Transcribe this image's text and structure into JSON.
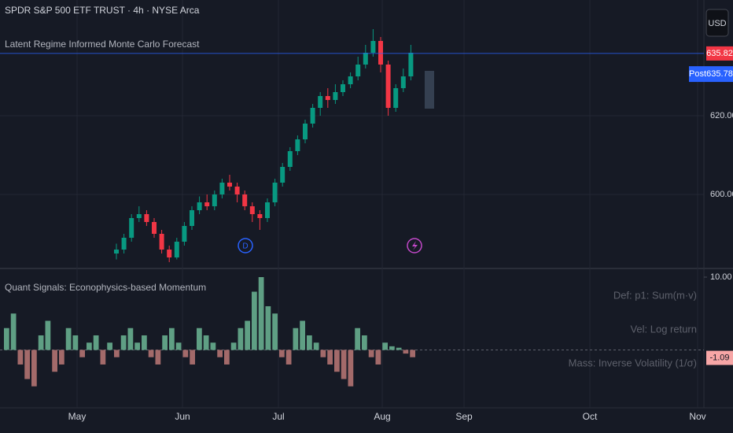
{
  "header": {
    "symbol": "SPDR S&P 500 ETF TRUST · 4h · NYSE Arca",
    "indicator": "Latent Regime Informed Monte Carlo Forecast",
    "currency": "USD"
  },
  "price_labels": {
    "last": 635.82,
    "post_tag": "Post",
    "post": 635.78
  },
  "chart_data": [
    {
      "type": "candlestick",
      "open": [
        585,
        586,
        589,
        594,
        595,
        593,
        590,
        586,
        584,
        588,
        592,
        596,
        598,
        597,
        600,
        603,
        602,
        600,
        597,
        595,
        594,
        598,
        603,
        607,
        611,
        614,
        618,
        622,
        625,
        624,
        626,
        628,
        630,
        633,
        636,
        639,
        633,
        622,
        627,
        630
      ],
      "high": [
        587.5,
        590,
        595,
        597,
        596,
        594,
        591,
        587,
        589,
        593,
        597,
        599.5,
        600,
        601,
        604,
        605,
        603,
        601,
        598,
        596,
        599,
        604,
        608,
        612,
        615,
        619,
        623,
        626,
        627,
        628,
        629,
        631,
        635,
        638,
        642,
        640,
        634,
        628,
        632,
        638
      ],
      "low": [
        583.5,
        585,
        588,
        593,
        592,
        589,
        585,
        582.8,
        583.5,
        587,
        591,
        595,
        596,
        596,
        599,
        601,
        598,
        596,
        593,
        591,
        593,
        597,
        602,
        606,
        610,
        613,
        617,
        620,
        622,
        623,
        625,
        627,
        629,
        632,
        635,
        631,
        620,
        621,
        626,
        629
      ],
      "close": [
        586,
        589,
        594,
        595,
        593,
        590,
        586,
        584,
        588,
        592,
        596,
        598,
        597,
        600,
        603,
        602,
        600,
        597,
        595,
        594,
        598,
        603,
        607,
        611,
        614,
        618,
        622,
        625,
        624,
        626,
        628,
        630,
        633,
        636,
        639,
        633,
        622,
        627,
        630,
        636
      ],
      "up_color": "#089981",
      "down_color": "#f23645",
      "ylim": [
        582.4,
        649.4
      ],
      "yticks": [
        {
          "value": 600,
          "label": "600.00"
        },
        {
          "value": 620,
          "label": "620.00"
        }
      ],
      "grid": true
    },
    {
      "type": "bar",
      "title": "Quant Signals: Econophysics-based Momentum",
      "values": [
        3,
        5,
        -2,
        -4,
        -5,
        2,
        4,
        -3,
        -2,
        3,
        2,
        -1,
        1,
        2,
        -2,
        1,
        -1,
        2,
        3,
        1,
        2,
        -1,
        -2,
        2,
        3,
        1,
        -1,
        -2,
        3,
        2,
        1,
        -1,
        -2,
        1,
        3,
        4,
        8,
        10,
        6,
        5,
        -1,
        -2,
        3,
        4,
        2,
        1,
        -1,
        -2,
        -3,
        -4,
        -5,
        3,
        2,
        -1,
        -2,
        1,
        0.5,
        0.3,
        -0.5,
        -1
      ],
      "positive_color": "#5f9f84",
      "negative_color": "#a36a6a",
      "ylim": [
        -7.95,
        10
      ],
      "yticks": [
        {
          "value": 10,
          "label": "10.00"
        }
      ],
      "last_value": -1.09,
      "table": [
        "Def: p1: Sum(m·v)",
        "Vel: Log return",
        "Mass: Inverse Volatility (1/σ)"
      ]
    }
  ],
  "time_axis": {
    "months": [
      "May",
      "Jun",
      "Jul",
      "Aug",
      "Sep",
      "Oct",
      "Nov"
    ]
  },
  "markers": {
    "dividend": "D"
  }
}
